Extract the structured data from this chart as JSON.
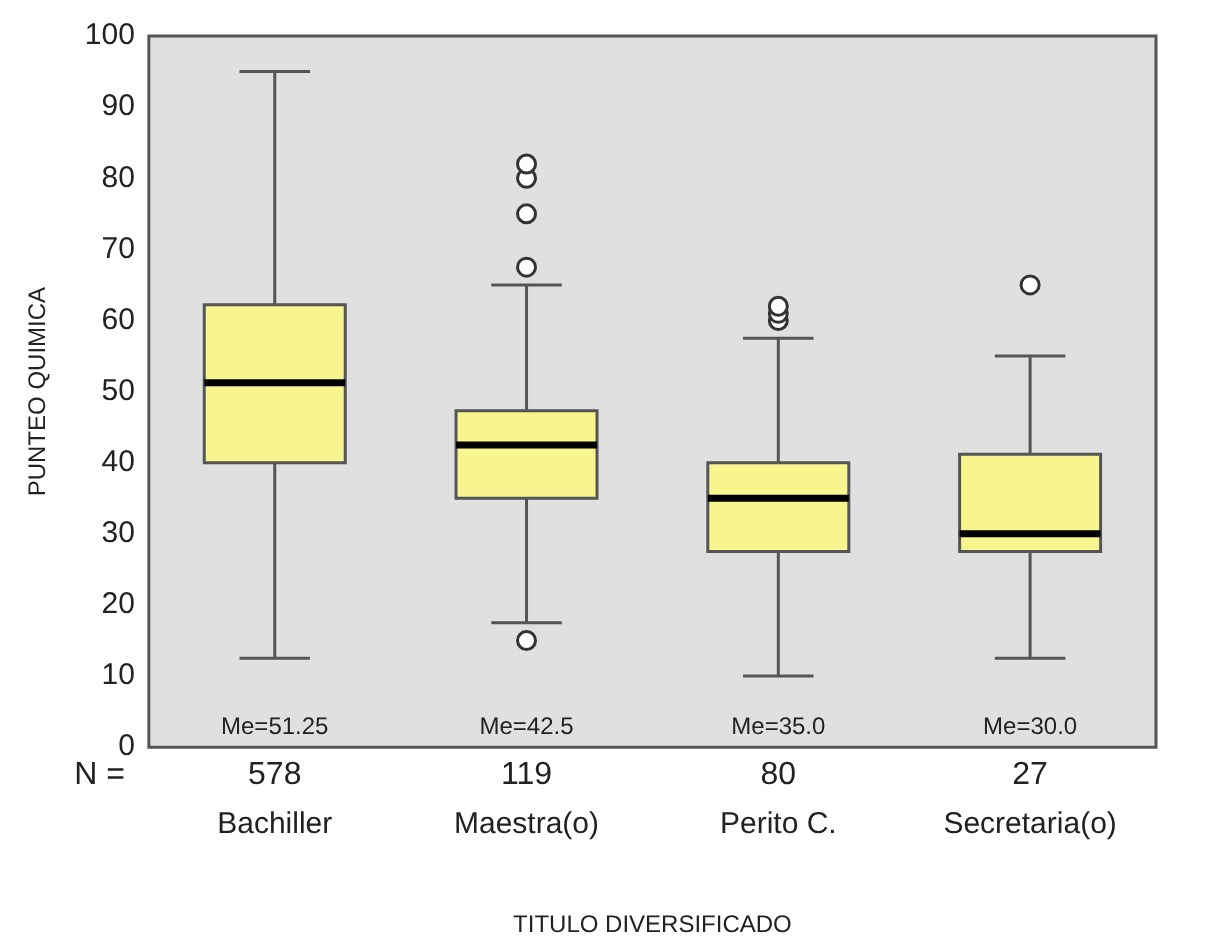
{
  "chart_data": {
    "type": "box",
    "xlabel": "TITULO DIVERSIFICADO",
    "ylabel": "PUNTEO QUIMICA",
    "categories": [
      "Bachiller",
      "Maestra(o)",
      "Perito C.",
      "Secretaria(o)"
    ],
    "color": "#f8f58f",
    "boxes": [
      {
        "low": 12.5,
        "q1": 40,
        "median": 51.25,
        "q3": 62.2,
        "high": 95
      },
      {
        "low": 17.5,
        "q1": 35,
        "median": 42.5,
        "q3": 47.3,
        "high": 65,
        "outliers": [
          15,
          67.5,
          75,
          80,
          82
        ]
      },
      {
        "low": 10,
        "q1": 27.5,
        "median": 35,
        "q3": 40,
        "high": 57.5,
        "outliers": [
          60,
          61,
          62
        ]
      },
      {
        "low": 12.5,
        "q1": 27.5,
        "median": 30,
        "q3": 41.2,
        "high": 55,
        "outliers": [
          65
        ]
      }
    ],
    "ylim": [
      0,
      100
    ],
    "yticks": [
      0,
      10,
      20,
      30,
      40,
      50,
      60,
      70,
      80,
      90,
      100
    ],
    "grid": false,
    "legend": false,
    "annotations": [
      "N =",
      "Me=51.25",
      "578",
      "Me=42.5",
      "119",
      "Me=35.0",
      "80",
      "Me=30.0",
      "27"
    ]
  }
}
